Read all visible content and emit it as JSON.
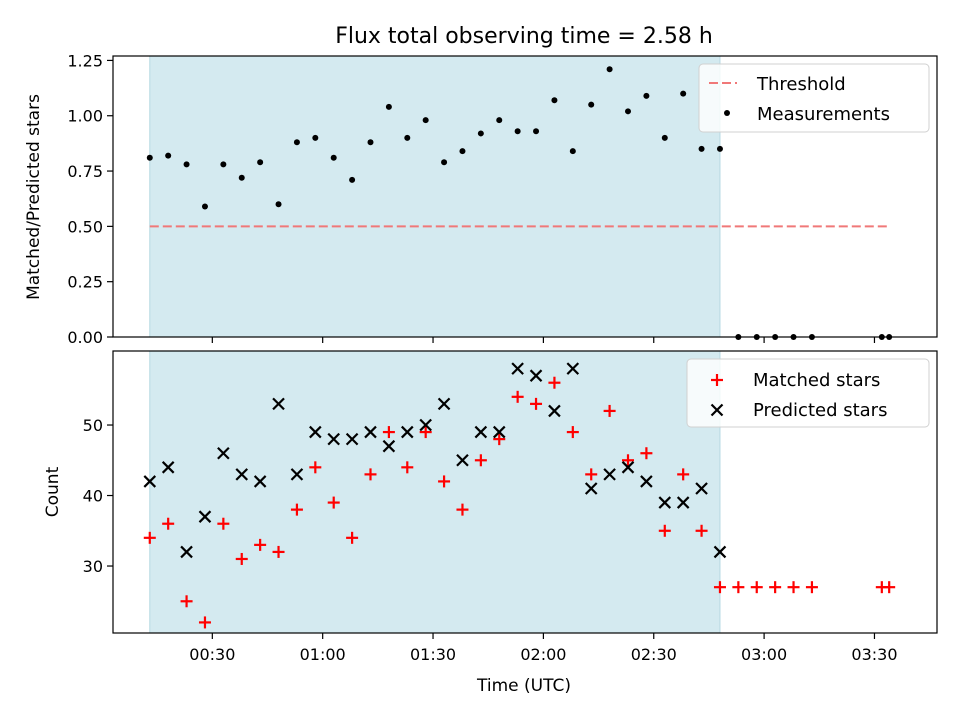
{
  "chart_data": {
    "title": "Flux total observing time = 2.58 h",
    "x_axis": {
      "label": "Time (UTC)",
      "range_minutes": [
        3,
        227
      ],
      "ticks": [
        {
          "minutes": 30,
          "label": "00:30"
        },
        {
          "minutes": 60,
          "label": "01:00"
        },
        {
          "minutes": 90,
          "label": "01:30"
        },
        {
          "minutes": 120,
          "label": "02:00"
        },
        {
          "minutes": 150,
          "label": "02:30"
        },
        {
          "minutes": 180,
          "label": "03:00"
        },
        {
          "minutes": 210,
          "label": "03:30"
        }
      ]
    },
    "shaded_interval_minutes": [
      13,
      168
    ],
    "shade_color": "#d4eaf0",
    "subplots": [
      {
        "type": "scatter",
        "ylabel": "Matched/Predicted stars",
        "ylim": [
          0,
          1.27
        ],
        "yticks": [
          0,
          0.25,
          0.5,
          0.75,
          1.0,
          1.25
        ],
        "ytick_labels": [
          "0.00",
          "0.25",
          "0.50",
          "0.75",
          "1.00",
          "1.25"
        ],
        "legend_position": "upper right",
        "threshold": {
          "name": "Threshold",
          "value": 0.5,
          "x_range": [
            13,
            214
          ],
          "color": "#f07878",
          "style": "dashed"
        },
        "measurements": {
          "name": "Measurements",
          "color": "#000000",
          "x": [
            13,
            18,
            23,
            28,
            33,
            38,
            43,
            48,
            53,
            58,
            63,
            68,
            73,
            78,
            83,
            88,
            93,
            98,
            103,
            108,
            113,
            118,
            123,
            128,
            133,
            138,
            143,
            148,
            153,
            158,
            163,
            168,
            173,
            178,
            183,
            188,
            193,
            212,
            214
          ],
          "y": [
            0.81,
            0.82,
            0.78,
            0.59,
            0.78,
            0.72,
            0.79,
            0.6,
            0.88,
            0.9,
            0.81,
            0.71,
            0.88,
            1.04,
            0.9,
            0.98,
            0.79,
            0.84,
            0.92,
            0.98,
            0.93,
            0.93,
            1.07,
            0.84,
            1.05,
            1.21,
            1.02,
            1.09,
            0.9,
            1.1,
            0.85,
            0.85,
            0.0,
            0.0,
            0.0,
            0.0,
            0.0,
            0.0,
            0.0
          ]
        }
      },
      {
        "type": "scatter",
        "ylabel": "Count",
        "ylim": [
          20.5,
          60.5
        ],
        "yticks": [
          30,
          40,
          50
        ],
        "ytick_labels": [
          "30",
          "40",
          "50"
        ],
        "legend_position": "upper right",
        "series": [
          {
            "name": "Matched stars",
            "marker": "plus",
            "color": "#ff0000",
            "x": [
              13,
              18,
              23,
              28,
              33,
              38,
              43,
              48,
              53,
              58,
              63,
              68,
              73,
              78,
              83,
              88,
              93,
              98,
              103,
              108,
              113,
              118,
              123,
              128,
              133,
              138,
              143,
              148,
              153,
              158,
              163,
              168,
              173,
              178,
              183,
              188,
              193,
              212,
              214
            ],
            "y": [
              34,
              36,
              25,
              22,
              36,
              31,
              33,
              32,
              38,
              44,
              39,
              34,
              43,
              49,
              44,
              49,
              42,
              38,
              45,
              48,
              54,
              53,
              56,
              49,
              43,
              52,
              45,
              46,
              35,
              43,
              35,
              27,
              27,
              27,
              27,
              27,
              27,
              27,
              27
            ]
          },
          {
            "name": "Predicted stars",
            "marker": "x",
            "color": "#000000",
            "x": [
              13,
              18,
              23,
              28,
              33,
              38,
              43,
              48,
              53,
              58,
              63,
              68,
              73,
              78,
              83,
              88,
              93,
              98,
              103,
              108,
              113,
              118,
              123,
              128,
              133,
              138,
              143,
              148,
              153,
              158,
              163,
              168
            ],
            "y": [
              42,
              44,
              32,
              37,
              46,
              43,
              42,
              53,
              43,
              49,
              48,
              48,
              49,
              47,
              49,
              50,
              53,
              45,
              49,
              49,
              58,
              57,
              52,
              58,
              41,
              43,
              44,
              42,
              39,
              39,
              41,
              32
            ]
          }
        ]
      }
    ]
  }
}
